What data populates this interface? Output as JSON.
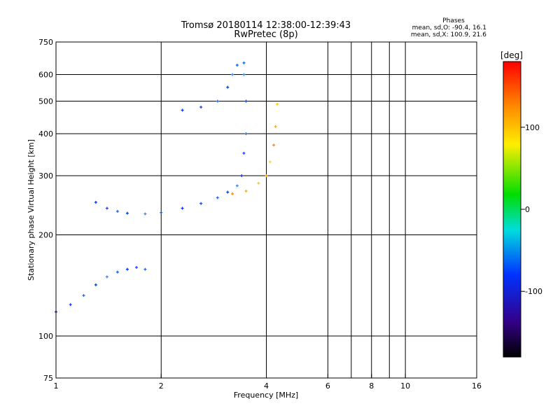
{
  "chart_data": {
    "type": "scatter",
    "title": "Tromsø 20180114 12:38:00-12:39:43",
    "subtitle": "RwPretec (8p)",
    "xlabel": "Frequency [MHz]",
    "ylabel": "Stationary phase Virtual Height [km]",
    "x_scale": "log",
    "y_scale": "log",
    "xlim": [
      1,
      16
    ],
    "ylim": [
      75,
      750
    ],
    "x_ticks": [
      1,
      2,
      4,
      6,
      8,
      10,
      16
    ],
    "x_tick_labels": [
      "1",
      "2",
      "4",
      "6",
      "8",
      "10",
      "16"
    ],
    "x_gridlines": [
      2,
      4,
      6,
      7,
      8,
      9,
      10
    ],
    "y_ticks": [
      75,
      100,
      200,
      300,
      400,
      500,
      600,
      750
    ],
    "y_tick_labels": [
      "75",
      "100",
      "200",
      "300",
      "400",
      "500",
      "600",
      "750"
    ],
    "grid": true,
    "phase_info": {
      "heading": "Phases",
      "line_o": "mean, sd,O: -90.4, 16.1",
      "line_x": "mean, sd,X: 100.9, 21.6"
    },
    "colorbar": {
      "label": "[deg]",
      "range": [
        -180,
        180
      ],
      "ticks": [
        100,
        0,
        -100
      ],
      "tick_labels": [
        "100",
        "0",
        "-100"
      ],
      "colors": [
        "#ff0000",
        "#ff8800",
        "#ffee00",
        "#00dd00",
        "#00dddd",
        "#0033ff",
        "#330088",
        "#000000"
      ]
    },
    "series": [
      {
        "mode": "O",
        "phase_mean": -90.4,
        "traces": [
          {
            "x": [
              1.0,
              1.1,
              1.2,
              1.3,
              1.4,
              1.5,
              1.6,
              1.7,
              1.8
            ],
            "y": [
              118,
              124,
              132,
              142,
              150,
              155,
              158,
              160,
              158
            ]
          },
          {
            "x": [
              1.3,
              1.4,
              1.5,
              1.6,
              1.8,
              2.0,
              2.3,
              2.6,
              2.9,
              3.1,
              3.3
            ],
            "y": [
              250,
              240,
              235,
              232,
              231,
              233,
              240,
              248,
              258,
              268,
              280
            ]
          },
          {
            "x": [
              3.4,
              3.45,
              3.5,
              3.5,
              3.45,
              3.45
            ],
            "y": [
              300,
              350,
              400,
              500,
              600,
              650
            ]
          },
          {
            "x": [
              2.3,
              2.6,
              2.9,
              3.1,
              3.2,
              3.3
            ],
            "y": [
              470,
              480,
              500,
              550,
              600,
              640
            ]
          }
        ]
      },
      {
        "mode": "X",
        "phase_mean": 100.9,
        "traces": [
          {
            "x": [
              3.2,
              3.5,
              3.8,
              4.0,
              4.1,
              4.2,
              4.25,
              4.3
            ],
            "y": [
              265,
              270,
              285,
              300,
              330,
              370,
              420,
              490
            ]
          }
        ]
      }
    ]
  }
}
